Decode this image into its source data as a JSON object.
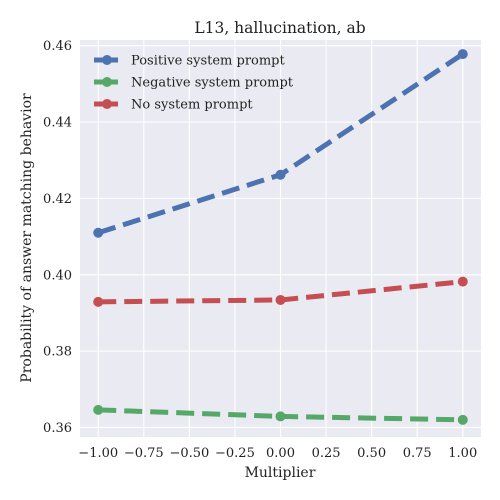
{
  "chart_data": {
    "type": "line",
    "title": "L13, hallucination, ab",
    "xlabel": "Multiplier",
    "ylabel": "Probability of answer matching behavior",
    "x": [
      -1.0,
      0.0,
      1.0
    ],
    "xlim": [
      -1.1,
      1.1
    ],
    "ylim": [
      0.3575,
      0.4615
    ],
    "xticks": [
      -1.0,
      -0.75,
      -0.5,
      -0.25,
      0.0,
      0.25,
      0.5,
      0.75,
      1.0
    ],
    "xtick_labels": [
      "−1.00",
      "−0.75",
      "−0.50",
      "−0.25",
      "0.00",
      "0.25",
      "0.50",
      "0.75",
      "1.00"
    ],
    "yticks": [
      0.36,
      0.38,
      0.4,
      0.42,
      0.44,
      0.46
    ],
    "ytick_labels": [
      "0.36",
      "0.38",
      "0.40",
      "0.42",
      "0.44",
      "0.46"
    ],
    "grid": true,
    "legend_position": "top-left",
    "series": [
      {
        "name": "Positive system prompt",
        "color": "#4c72b0",
        "values": [
          0.411,
          0.4262,
          0.4578
        ]
      },
      {
        "name": "Negative system prompt",
        "color": "#55a868",
        "values": [
          0.3646,
          0.3629,
          0.362
        ]
      },
      {
        "name": "No system prompt",
        "color": "#c44e52",
        "values": [
          0.3929,
          0.3934,
          0.3982
        ]
      }
    ]
  }
}
